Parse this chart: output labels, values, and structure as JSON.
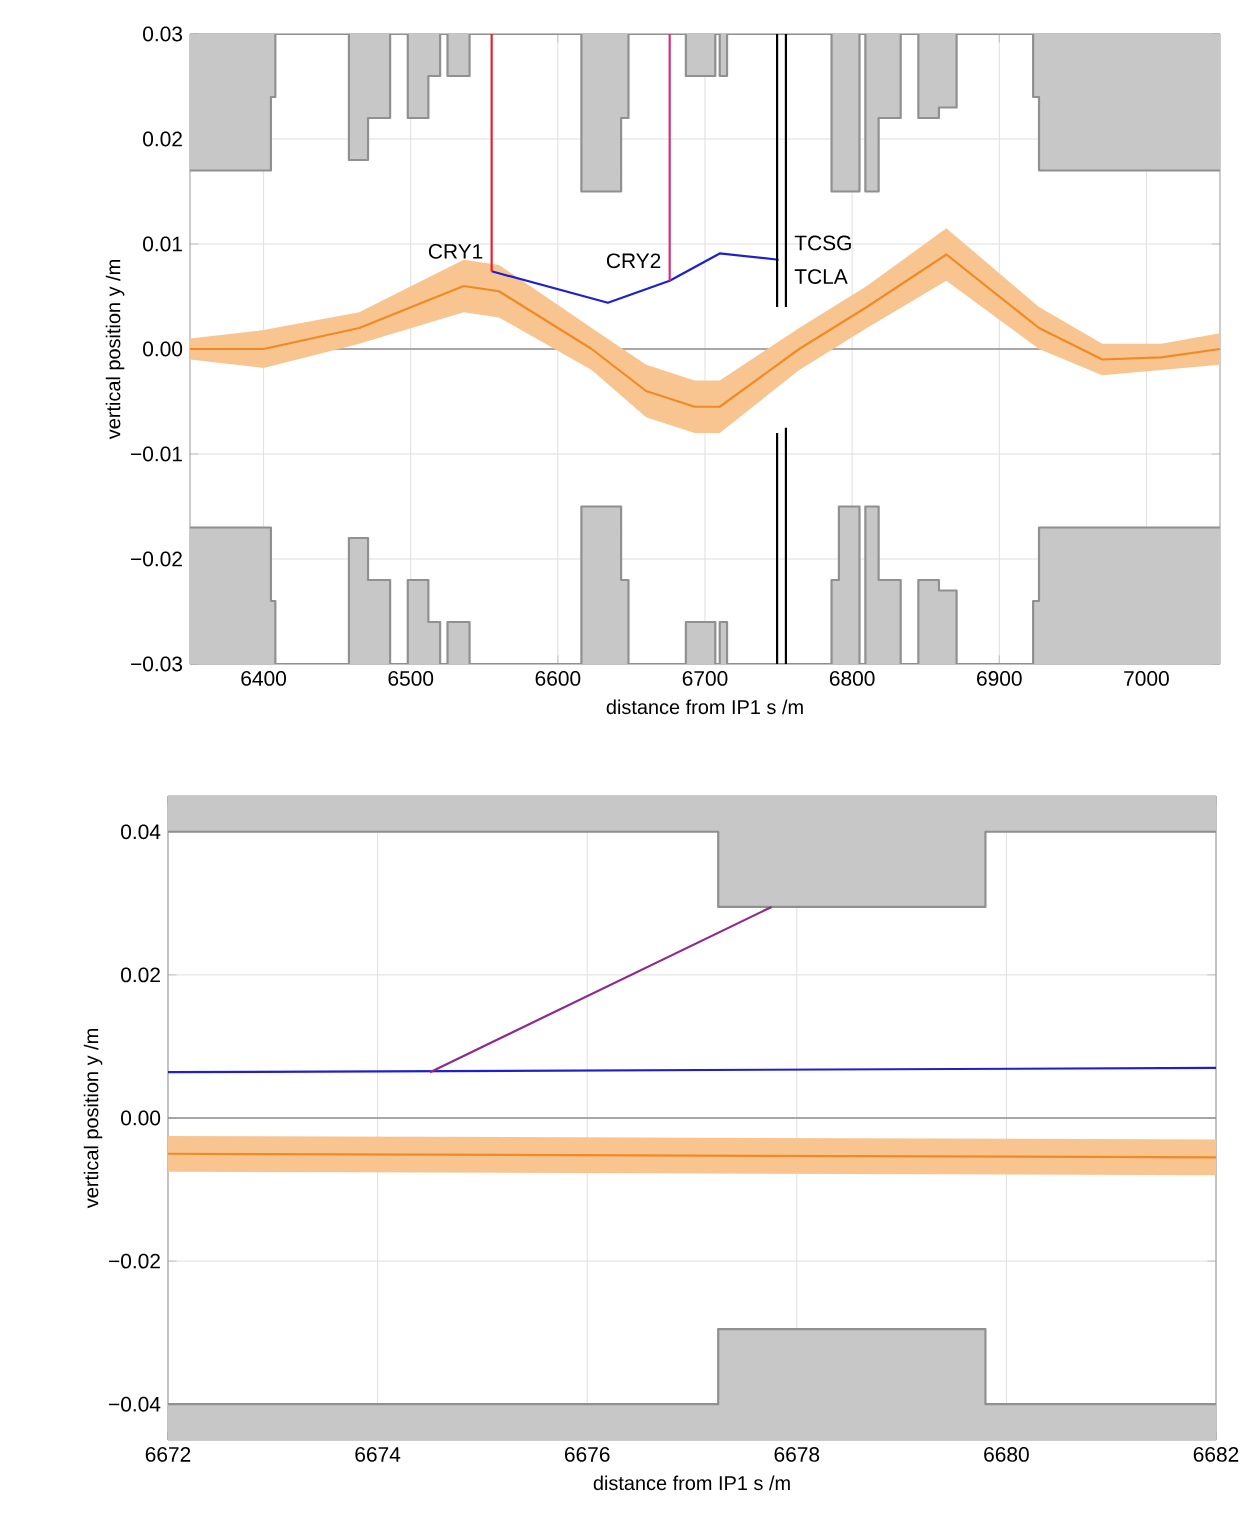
{
  "chart_data": [
    {
      "type": "line",
      "xlabel": "distance from IP1 s /m",
      "ylabel": "vertical position y /m",
      "xlim": [
        6350,
        7050
      ],
      "ylim": [
        -0.03,
        0.03
      ],
      "xticks": [
        6400,
        6500,
        6600,
        6700,
        6800,
        6900,
        7000
      ],
      "yticks": [
        {
          "value": -0.03,
          "label": "−0.03"
        },
        {
          "value": -0.02,
          "label": "−0.02"
        },
        {
          "value": -0.01,
          "label": "−0.01"
        },
        {
          "value": 0,
          "label": "0.00"
        },
        {
          "value": 0.01,
          "label": "0.01"
        },
        {
          "value": 0.02,
          "label": "0.02"
        },
        {
          "value": 0.03,
          "label": "0.03"
        }
      ],
      "grid": true,
      "ref_lines": [
        {
          "axis": "y",
          "value": 0,
          "color": "#909090"
        }
      ],
      "series": [
        {
          "type": "line",
          "color": "#909090",
          "x": [
            6350,
            6405,
            6405,
            6408,
            6408,
            6458,
            6458,
            6471,
            6471,
            6486,
            6486,
            6498,
            6498,
            6512,
            6512,
            6520,
            6520,
            6525,
            6525,
            6540,
            6540,
            6616,
            6616,
            6643,
            6643,
            6648,
            6648,
            6687,
            6687,
            6707,
            6707,
            6710,
            6710,
            6715,
            6715,
            6786,
            6786,
            6805,
            6805,
            6809,
            6809,
            6818,
            6818,
            6833,
            6833,
            6845,
            6845,
            6859,
            6859,
            6871,
            6871,
            6923,
            6923,
            6927,
            6927,
            7050
          ],
          "values": [
            0.017,
            0.017,
            0.024,
            0.024,
            0.03,
            0.03,
            0.018,
            0.018,
            0.022,
            0.022,
            0.03,
            0.03,
            0.022,
            0.022,
            0.026,
            0.026,
            0.03,
            0.03,
            0.026,
            0.026,
            0.03,
            0.03,
            0.015,
            0.015,
            0.022,
            0.022,
            0.03,
            0.03,
            0.026,
            0.026,
            0.03,
            0.03,
            0.026,
            0.026,
            0.03,
            0.03,
            0.015,
            0.015,
            0.03,
            0.03,
            0.015,
            0.015,
            0.022,
            0.022,
            0.03,
            0.03,
            0.022,
            0.022,
            0.023,
            0.023,
            0.03,
            0.03,
            0.024,
            0.024,
            0.017,
            0.017
          ],
          "lower": [
            0.017,
            0.017,
            0.024,
            0.024,
            0.03,
            0.03,
            0.018,
            0.018,
            0.022,
            0.022,
            0.03,
            0.03,
            0.022,
            0.022,
            0.026,
            0.026,
            0.03,
            0.03,
            0.026,
            0.026,
            0.03,
            0.03,
            0.015,
            0.015,
            0.022,
            0.022,
            0.03,
            0.03,
            0.026,
            0.026,
            0.03,
            0.03,
            0.026,
            0.026,
            0.03,
            0.03,
            0.015,
            0.015,
            0.03,
            0.03,
            0.015,
            0.015,
            0.022,
            0.022,
            0.03,
            0.03,
            0.022,
            0.022,
            0.023,
            0.023,
            0.03,
            0.03,
            0.024,
            0.024,
            0.017,
            0.017
          ],
          "upper": [
            0.03,
            0.03,
            0.03,
            0.03,
            0.03,
            0.03,
            0.03,
            0.03,
            0.03,
            0.03,
            0.03,
            0.03,
            0.03,
            0.03,
            0.03,
            0.03,
            0.03,
            0.03,
            0.03,
            0.03,
            0.03,
            0.03,
            0.03,
            0.03,
            0.03,
            0.03,
            0.03,
            0.03,
            0.03,
            0.03,
            0.03,
            0.03,
            0.03,
            0.03,
            0.03,
            0.03,
            0.03,
            0.03,
            0.03,
            0.03,
            0.03,
            0.03,
            0.03,
            0.03,
            0.03,
            0.03,
            0.03,
            0.03,
            0.03,
            0.03,
            0.03,
            0.03,
            0.03,
            0.03,
            0.03,
            0.03
          ]
        },
        {
          "type": "line",
          "color": "#909090",
          "x": [
            6350,
            6405,
            6405,
            6408,
            6408,
            6458,
            6458,
            6471,
            6471,
            6486,
            6486,
            6498,
            6498,
            6512,
            6512,
            6520,
            6520,
            6525,
            6525,
            6540,
            6540,
            6616,
            6616,
            6643,
            6643,
            6648,
            6648,
            6687,
            6687,
            6707,
            6707,
            6710,
            6710,
            6715,
            6715,
            6786,
            6786,
            6791,
            6791,
            6805,
            6805,
            6809,
            6809,
            6818,
            6818,
            6833,
            6833,
            6845,
            6845,
            6859,
            6859,
            6871,
            6871,
            6923,
            6923,
            6927,
            6927,
            7050
          ],
          "values": [
            -0.017,
            -0.017,
            -0.024,
            -0.024,
            -0.03,
            -0.03,
            -0.018,
            -0.018,
            -0.022,
            -0.022,
            -0.03,
            -0.03,
            -0.022,
            -0.022,
            -0.026,
            -0.026,
            -0.03,
            -0.03,
            -0.026,
            -0.026,
            -0.03,
            -0.03,
            -0.015,
            -0.015,
            -0.022,
            -0.022,
            -0.03,
            -0.03,
            -0.026,
            -0.026,
            -0.03,
            -0.03,
            -0.026,
            -0.026,
            -0.03,
            -0.03,
            -0.022,
            -0.022,
            -0.015,
            -0.015,
            -0.03,
            -0.03,
            -0.015,
            -0.015,
            -0.022,
            -0.022,
            -0.03,
            -0.03,
            -0.022,
            -0.022,
            -0.023,
            -0.023,
            -0.03,
            -0.03,
            -0.024,
            -0.024,
            -0.017,
            -0.017
          ],
          "lower": [
            -0.03,
            -0.03,
            -0.03,
            -0.03,
            -0.03,
            -0.03,
            -0.03,
            -0.03,
            -0.03,
            -0.03,
            -0.03,
            -0.03,
            -0.03,
            -0.03,
            -0.03,
            -0.03,
            -0.03,
            -0.03,
            -0.03,
            -0.03,
            -0.03,
            -0.03,
            -0.03,
            -0.03,
            -0.03,
            -0.03,
            -0.03,
            -0.03,
            -0.03,
            -0.03,
            -0.03,
            -0.03,
            -0.03,
            -0.03,
            -0.03,
            -0.03,
            -0.03,
            -0.03,
            -0.03,
            -0.03,
            -0.03,
            -0.03,
            -0.03,
            -0.03,
            -0.03,
            -0.03,
            -0.03,
            -0.03,
            -0.03,
            -0.03,
            -0.03,
            -0.03,
            -0.03,
            -0.03,
            -0.03,
            -0.03,
            -0.03,
            -0.03
          ],
          "upper": [
            -0.017,
            -0.017,
            -0.024,
            -0.024,
            -0.03,
            -0.03,
            -0.018,
            -0.018,
            -0.022,
            -0.022,
            -0.03,
            -0.03,
            -0.022,
            -0.022,
            -0.026,
            -0.026,
            -0.03,
            -0.03,
            -0.026,
            -0.026,
            -0.03,
            -0.03,
            -0.015,
            -0.015,
            -0.022,
            -0.022,
            -0.03,
            -0.03,
            -0.026,
            -0.026,
            -0.03,
            -0.03,
            -0.026,
            -0.026,
            -0.03,
            -0.03,
            -0.022,
            -0.022,
            -0.015,
            -0.015,
            -0.03,
            -0.03,
            -0.015,
            -0.015,
            -0.022,
            -0.022,
            -0.03,
            -0.03,
            -0.022,
            -0.022,
            -0.023,
            -0.023,
            -0.03,
            -0.03,
            -0.024,
            -0.024,
            -0.017,
            -0.017
          ]
        },
        {
          "type": "line",
          "color": "#f08a24",
          "x": [
            6350,
            6400,
            6465,
            6536,
            6560,
            6623,
            6660,
            6693,
            6710,
            6764,
            6810,
            6864,
            6927,
            6970,
            7010,
            7050
          ],
          "values": [
            0,
            0,
            0.002,
            0.006,
            0.0055,
            0,
            -0.004,
            -0.0055,
            -0.0055,
            0,
            0.004,
            0.009,
            0.002,
            -0.001,
            -0.0008,
            0
          ],
          "lower": [
            -0.001,
            -0.0018,
            0.0005,
            0.0035,
            0.003,
            -0.002,
            -0.0065,
            -0.008,
            -0.008,
            -0.002,
            0.002,
            0.0065,
            0,
            -0.0025,
            -0.002,
            -0.0015
          ],
          "upper": [
            0.001,
            0.0018,
            0.0035,
            0.0085,
            0.008,
            0.002,
            -0.0015,
            -0.003,
            -0.003,
            0.002,
            0.006,
            0.0115,
            0.004,
            0.0005,
            0.0005,
            0.0015
          ]
        },
        {
          "type": "line",
          "color": "#1f1fd0",
          "x": [
            6555,
            6634,
            6676,
            6710,
            6750
          ],
          "values": [
            0.0074,
            0.0044,
            0.0065,
            0.0091,
            0.0085
          ]
        },
        {
          "type": "line",
          "color": "#e8202a",
          "x": [
            6555,
            6555
          ],
          "values": [
            0.0074,
            0.03
          ]
        },
        {
          "type": "line",
          "color": "#d0307a",
          "x": [
            6676,
            6676
          ],
          "values": [
            0.0065,
            0.03
          ]
        },
        {
          "type": "line",
          "color": "#000000",
          "x": [
            6749,
            6749
          ],
          "values": [
            0.004,
            0.03
          ]
        },
        {
          "type": "line",
          "color": "#000000",
          "x": [
            6755,
            6755
          ],
          "values": [
            0.004,
            0.03
          ]
        },
        {
          "type": "line",
          "color": "#000000",
          "x": [
            6749,
            6749
          ],
          "values": [
            -0.03,
            -0.008
          ]
        },
        {
          "type": "line",
          "color": "#000000",
          "x": [
            6755,
            6755
          ],
          "values": [
            -0.03,
            -0.0075
          ]
        }
      ],
      "annotations": [
        {
          "text": "CRY1",
          "x": 6555,
          "y": 0.0093
        },
        {
          "text": "CRY2",
          "x": 6676,
          "y": 0.0084
        },
        {
          "text": "TCSG",
          "x": 6755,
          "y": 0.0101
        },
        {
          "text": "TCLA",
          "x": 6755,
          "y": 0.0069
        }
      ]
    },
    {
      "type": "line",
      "xlabel": "distance from IP1 s /m",
      "ylabel": "vertical position y /m",
      "xlim": [
        6672,
        6682
      ],
      "ylim": [
        -0.045,
        0.045
      ],
      "xticks": [
        6672,
        6674,
        6676,
        6678,
        6680,
        6682
      ],
      "yticks": [
        {
          "value": -0.04,
          "label": "−0.04"
        },
        {
          "value": -0.02,
          "label": "−0.02"
        },
        {
          "value": 0,
          "label": "0.00"
        },
        {
          "value": 0.02,
          "label": "0.02"
        },
        {
          "value": 0.04,
          "label": "0.04"
        }
      ],
      "grid": true,
      "ref_lines": [
        {
          "axis": "y",
          "value": 0,
          "color": "#909090"
        }
      ],
      "series": [
        {
          "type": "line",
          "color": "#909090",
          "x": [
            6672,
            6677.25,
            6677.25,
            6679.8,
            6679.8,
            6682
          ],
          "values": [
            0.04,
            0.04,
            0.0295,
            0.0295,
            0.04,
            0.04
          ],
          "lower": [
            0.04,
            0.04,
            0.0295,
            0.0295,
            0.04,
            0.04
          ],
          "upper": [
            0.045,
            0.045,
            0.045,
            0.045,
            0.045,
            0.045
          ]
        },
        {
          "type": "line",
          "color": "#909090",
          "x": [
            6672,
            6677.25,
            6677.25,
            6679.8,
            6679.8,
            6682
          ],
          "values": [
            -0.04,
            -0.04,
            -0.0295,
            -0.0295,
            -0.04,
            -0.04
          ],
          "lower": [
            -0.045,
            -0.045,
            -0.045,
            -0.045,
            -0.045,
            -0.045
          ],
          "upper": [
            -0.04,
            -0.04,
            -0.0295,
            -0.0295,
            -0.04,
            -0.04
          ]
        },
        {
          "type": "line",
          "color": "#f08a24",
          "x": [
            6672,
            6682
          ],
          "values": [
            -0.005,
            -0.0055
          ],
          "lower": [
            -0.0075,
            -0.008
          ],
          "upper": [
            -0.0025,
            -0.003
          ]
        },
        {
          "type": "line",
          "color": "#1f1fd0",
          "x": [
            6672,
            6682
          ],
          "values": [
            0.0064,
            0.007
          ]
        },
        {
          "type": "line",
          "color": "#8e2a8e",
          "x": [
            6674.5,
            6677.76
          ],
          "values": [
            0.0064,
            0.0295
          ]
        }
      ]
    }
  ]
}
